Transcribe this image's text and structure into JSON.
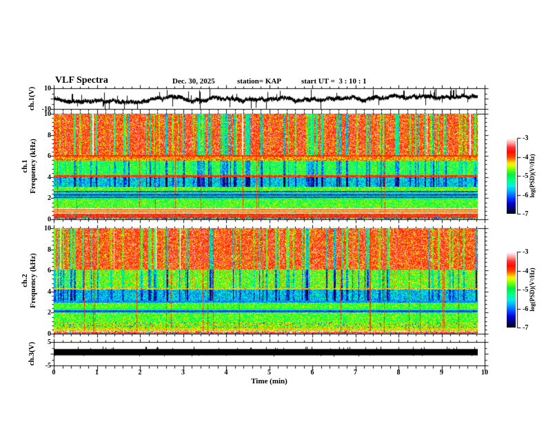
{
  "header": {
    "title": "VLF Spectra",
    "date": "Dec. 30, 2025",
    "station": "station= KAP",
    "start_ut": "start UT =  3 : 10 : 1"
  },
  "axes": {
    "time": {
      "label": "Time (min)",
      "ticks": [
        0,
        1,
        2,
        3,
        4,
        5,
        6,
        7,
        8,
        9,
        10
      ],
      "lim": [
        0,
        10
      ],
      "minor_step": 0.2
    },
    "ch1_wave": {
      "label": "ch.1(V)",
      "ticks": [
        10,
        -10
      ],
      "minor": [
        5,
        0,
        -5
      ],
      "lim": [
        -10,
        10
      ]
    },
    "spec_freq": {
      "ticks": [
        10,
        8,
        6,
        4,
        2,
        0
      ],
      "lim": [
        0,
        10
      ],
      "minor_step": 0.4
    },
    "ch1_spec_label": [
      "ch.1",
      "Frequency (kHz)"
    ],
    "ch2_spec_label": [
      "ch.2",
      "Frequency (kHz)"
    ],
    "ch3": {
      "label": "ch.3(V)",
      "ticks": [
        5,
        -5
      ],
      "minor": [
        2.5,
        0,
        -2.5
      ],
      "lim": [
        -5,
        5
      ]
    },
    "colorbar": {
      "label": "log(PSD)(V²/Hz)",
      "ticks": [
        -3,
        -4,
        -5,
        -6,
        -7
      ],
      "lim": [
        -7,
        -3
      ]
    }
  },
  "chart_data": [
    {
      "type": "line",
      "panel": "ch1-voltage-waveform",
      "ylabel": "ch.1(V)",
      "ylim": [
        -10,
        10
      ],
      "xlim_min": [
        0,
        10
      ],
      "data_end_min": 9.84,
      "description": "dense noisy black trace, mean near 0 V, envelope 2-4 V, frequent spikes to +10 and -10 V",
      "seed": 11,
      "baseline_clamp": [
        -4,
        3
      ],
      "spike_prob_up": 0.05,
      "spike_prob_down": 0.035
    },
    {
      "type": "heatmap",
      "panel": "ch1-spectrogram",
      "ylabel": "ch.1 Frequency (kHz)",
      "ylim": [
        0,
        10
      ],
      "xlim_min": [
        0,
        10
      ],
      "value_scale": "log(PSD)(V2/Hz)",
      "value_range": [
        -7,
        -3
      ],
      "seed": 101,
      "red_hairline_prob": 0.035,
      "bands": [
        {
          "f": [
            6.1,
            10.01
          ],
          "level": -3.6,
          "noise": 0.6,
          "green_streaks": true,
          "white_cols": true
        },
        {
          "f": [
            5.95,
            6.1
          ],
          "level": -3.85,
          "noise": 0.25
        },
        {
          "f": [
            5.55,
            5.95
          ],
          "level": -4.15,
          "noise": 0.45
        },
        {
          "f": [
            4.2,
            5.55
          ],
          "level": -4.85,
          "noise": 0.5,
          "blue_streaks": true
        },
        {
          "f": [
            4.0,
            4.2
          ],
          "level": -3.85,
          "noise": 0.3
        },
        {
          "f": [
            3.1,
            4.0
          ],
          "level": -5.5,
          "noise": 0.55,
          "blue_streaks": true
        },
        {
          "f": [
            2.5,
            3.1
          ],
          "level": -4.75,
          "noise": 0.4,
          "dark_rows": [
            2.62
          ]
        },
        {
          "f": [
            1.9,
            2.5
          ],
          "level": -5.0,
          "noise": 0.4,
          "dark_rows": [
            2.08,
            2.32
          ]
        },
        {
          "f": [
            1.05,
            1.9
          ],
          "level": -4.8,
          "noise": 0.45
        },
        {
          "f": [
            0.55,
            1.05
          ],
          "stripe_levels": [
            -3.05,
            -4.35,
            -3.7
          ],
          "noise": 0.2
        },
        {
          "f": [
            0.15,
            0.55
          ],
          "level": -3.75,
          "noise": 0.35,
          "dark_speckle": 0.1
        },
        {
          "f": [
            0.0,
            0.15
          ],
          "rainbow_speckle": true
        }
      ]
    },
    {
      "type": "heatmap",
      "panel": "ch2-spectrogram",
      "ylabel": "ch.2 Frequency (kHz)",
      "ylim": [
        0,
        10
      ],
      "xlim_min": [
        0,
        10
      ],
      "value_scale": "log(PSD)(V2/Hz)",
      "value_range": [
        -7,
        -3
      ],
      "seed": 202,
      "red_hairline_prob": 0.03,
      "bands": [
        {
          "f": [
            6.1,
            10.01
          ],
          "level": -3.6,
          "noise": 0.6,
          "green_streaks": true,
          "white_cols": true
        },
        {
          "f": [
            4.3,
            6.1
          ],
          "level": -4.5,
          "noise": 0.55,
          "green_streaks": true
        },
        {
          "f": [
            4.2,
            4.3
          ],
          "level": -4.3,
          "noise": 0.3
        },
        {
          "f": [
            3.15,
            4.2
          ],
          "level": -5.55,
          "noise": 0.55,
          "blue_streaks": true
        },
        {
          "f": [
            2.95,
            3.15
          ],
          "level": -5.9,
          "noise": 0.3
        },
        {
          "f": [
            2.4,
            2.95
          ],
          "level": -4.8,
          "noise": 0.4
        },
        {
          "f": [
            2.0,
            2.4
          ],
          "level": -5.0,
          "noise": 0.4,
          "dark_rows": [
            2.12
          ]
        },
        {
          "f": [
            1.1,
            2.0
          ],
          "level": -4.8,
          "noise": 0.45
        },
        {
          "f": [
            0.5,
            1.1
          ],
          "level": -4.6,
          "noise": 0.5,
          "blue_speckle": 0.06
        },
        {
          "f": [
            0.25,
            0.5
          ],
          "level": -4.4,
          "noise": 0.35
        },
        {
          "f": [
            0.1,
            0.25
          ],
          "level": -3.2,
          "noise": 0.25,
          "rainbow_speckle_p": 0.15
        },
        {
          "f": [
            0.0,
            0.1
          ],
          "level": -3.7,
          "noise": 0.3,
          "rainbow_speckle_p": 0.3
        }
      ]
    },
    {
      "type": "line",
      "panel": "ch3-voltage-waveform",
      "ylabel": "ch.3(V)",
      "ylim": [
        -5,
        5
      ],
      "xlim_min": [
        0,
        10
      ],
      "data_end_min": 9.84,
      "description": "saturated flat black band",
      "band_v": [
        -0.7,
        2.0
      ],
      "seed": 33
    }
  ],
  "colormap": {
    "stops": [
      [
        0.0,
        "#000000"
      ],
      [
        0.05,
        "#000050"
      ],
      [
        0.14,
        "#0000d0"
      ],
      [
        0.2,
        "#0030ff"
      ],
      [
        0.3,
        "#00aaff"
      ],
      [
        0.37,
        "#00f0e0"
      ],
      [
        0.44,
        "#00ff88"
      ],
      [
        0.52,
        "#00ee44"
      ],
      [
        0.58,
        "#66ff00"
      ],
      [
        0.63,
        "#ccff00"
      ],
      [
        0.67,
        "#ffee00"
      ],
      [
        0.71,
        "#ff9900"
      ],
      [
        0.75,
        "#ff4400"
      ],
      [
        0.82,
        "#ff0e00"
      ],
      [
        0.88,
        "#ff3333"
      ],
      [
        0.93,
        "#ff9999"
      ],
      [
        0.97,
        "#ffd6d6"
      ],
      [
        1.0,
        "#ffffff"
      ]
    ]
  }
}
